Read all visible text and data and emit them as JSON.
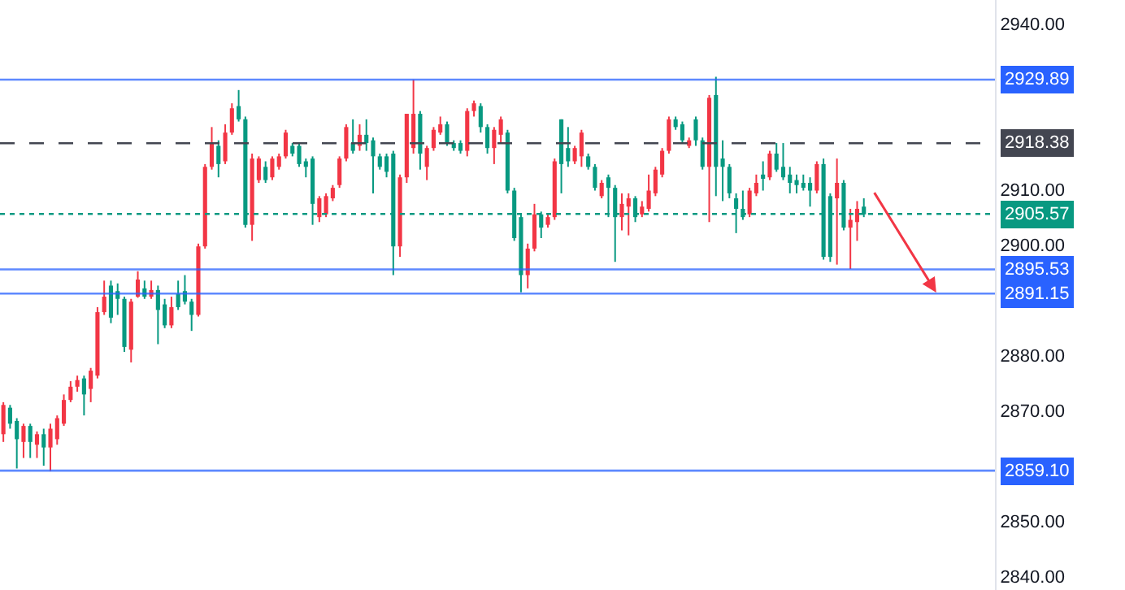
{
  "chart_data": {
    "type": "candlestick",
    "categories": [
      null,
      null,
      null,
      null,
      null,
      null,
      null,
      null,
      null,
      null,
      null,
      null,
      null,
      null,
      null,
      null,
      null,
      null,
      null,
      null,
      null,
      null,
      null,
      null,
      null,
      null,
      null,
      null,
      null,
      null,
      null,
      null,
      null,
      null,
      null,
      null,
      null,
      null,
      null,
      null,
      null,
      null,
      null,
      null,
      null,
      null,
      null,
      null,
      null,
      null,
      null,
      null,
      null,
      null,
      null,
      null,
      null,
      null,
      null,
      null,
      null,
      null,
      null,
      null,
      null,
      null,
      null,
      null,
      null,
      null,
      null,
      null,
      null,
      null,
      null,
      null,
      null,
      null,
      null,
      null,
      null,
      null,
      null,
      null,
      null,
      null,
      null,
      null,
      null,
      null,
      null,
      null,
      null,
      null,
      null,
      null,
      null,
      null,
      null,
      null,
      null,
      null,
      null,
      null,
      null,
      null,
      null,
      null,
      null,
      null,
      null,
      null,
      null,
      null,
      null,
      null,
      null,
      null,
      null,
      null,
      null,
      null,
      null,
      null,
      null,
      null,
      null,
      null,
      null,
      null,
      null,
      null,
      null,
      null,
      null,
      null,
      null,
      null,
      null,
      null,
      null,
      null,
      null,
      null,
      null,
      null,
      null,
      null
    ],
    "ohlc": [
      [
        2865.7,
        2871.5,
        2864.3,
        2871.0
      ],
      [
        2870.5,
        2871.0,
        2866.7,
        2867.6
      ],
      [
        2868.1,
        2868.6,
        2859.5,
        2864.8
      ],
      [
        2864.3,
        2867.6,
        2861.4,
        2867.2
      ],
      [
        2867.2,
        2867.6,
        2861.4,
        2864.3
      ],
      [
        2863.8,
        2866.2,
        2861.4,
        2865.7
      ],
      [
        2865.7,
        2866.7,
        2860.0,
        2863.3
      ],
      [
        2863.3,
        2867.6,
        2859.0,
        2866.7
      ],
      [
        2864.8,
        2869.1,
        2863.8,
        2868.6
      ],
      [
        2867.6,
        2872.9,
        2867.2,
        2871.9
      ],
      [
        2871.9,
        2875.3,
        2871.5,
        2874.3
      ],
      [
        2874.3,
        2876.3,
        2873.4,
        2875.5
      ],
      [
        2875.8,
        2876.3,
        2869.1,
        2872.9
      ],
      [
        2873.9,
        2877.7,
        2871.5,
        2877.2
      ],
      [
        2876.3,
        2888.7,
        2875.8,
        2887.8
      ],
      [
        2887.8,
        2893.5,
        2887.3,
        2890.6
      ],
      [
        2892.6,
        2893.5,
        2885.8,
        2886.8
      ],
      [
        2891.6,
        2893.0,
        2887.3,
        2890.2
      ],
      [
        2890.2,
        2890.6,
        2880.6,
        2881.5
      ],
      [
        2881.0,
        2890.2,
        2878.7,
        2889.7
      ],
      [
        2890.6,
        2895.2,
        2890.4,
        2893.7
      ],
      [
        2892.1,
        2893.5,
        2890.2,
        2890.6
      ],
      [
        2890.6,
        2893.5,
        2890.2,
        2891.8
      ],
      [
        2891.8,
        2892.6,
        2882.0,
        2888.2
      ],
      [
        2889.2,
        2890.2,
        2884.9,
        2885.4
      ],
      [
        2885.4,
        2890.6,
        2884.9,
        2888.7
      ],
      [
        2891.1,
        2893.5,
        2888.2,
        2888.7
      ],
      [
        2891.6,
        2894.5,
        2889.2,
        2889.7
      ],
      [
        2889.7,
        2890.2,
        2884.4,
        2887.3
      ],
      [
        2887.3,
        2900.2,
        2887.0,
        2899.7
      ],
      [
        2899.7,
        2914.6,
        2899.3,
        2914.1
      ],
      [
        2914.1,
        2921.3,
        2913.6,
        2918.4
      ],
      [
        2917.9,
        2918.9,
        2912.2,
        2914.6
      ],
      [
        2915.1,
        2921.8,
        2914.6,
        2920.3
      ],
      [
        2920.3,
        2925.6,
        2919.9,
        2924.7
      ],
      [
        2925.1,
        2928.0,
        2922.3,
        2922.7
      ],
      [
        2922.7,
        2923.2,
        2903.1,
        2903.6
      ],
      [
        2903.6,
        2916.5,
        2900.7,
        2915.6
      ],
      [
        2911.7,
        2916.0,
        2911.2,
        2915.6
      ],
      [
        2914.1,
        2915.1,
        2911.2,
        2911.7
      ],
      [
        2912.2,
        2916.0,
        2911.7,
        2915.6
      ],
      [
        2914.1,
        2916.5,
        2913.6,
        2916.0
      ],
      [
        2916.0,
        2920.8,
        2915.6,
        2920.3
      ],
      [
        2917.9,
        2918.4,
        2916.0,
        2916.5
      ],
      [
        2917.9,
        2918.4,
        2914.1,
        2914.6
      ],
      [
        2915.1,
        2915.6,
        2912.2,
        2914.1
      ],
      [
        2915.6,
        2916.0,
        2903.6,
        2907.4
      ],
      [
        2905.0,
        2908.8,
        2904.1,
        2908.4
      ],
      [
        2905.5,
        2909.3,
        2905.0,
        2908.8
      ],
      [
        2908.4,
        2910.8,
        2907.9,
        2910.3
      ],
      [
        2910.8,
        2916.0,
        2910.3,
        2915.6
      ],
      [
        2915.6,
        2921.8,
        2915.1,
        2921.3
      ],
      [
        2918.4,
        2922.7,
        2916.5,
        2917.0
      ],
      [
        2917.9,
        2921.8,
        2917.0,
        2919.9
      ],
      [
        2919.9,
        2922.7,
        2917.0,
        2918.4
      ],
      [
        2918.9,
        2919.4,
        2909.3,
        2916.0
      ],
      [
        2916.0,
        2916.5,
        2913.6,
        2914.1
      ],
      [
        2916.0,
        2916.5,
        2912.2,
        2913.2
      ],
      [
        2916.5,
        2917.0,
        2894.5,
        2899.7
      ],
      [
        2899.7,
        2912.7,
        2897.8,
        2912.2
      ],
      [
        2912.2,
        2923.7,
        2911.2,
        2923.7
      ],
      [
        2917.5,
        2929.9,
        2916.5,
        2923.7
      ],
      [
        2923.7,
        2924.2,
        2913.6,
        2916.5
      ],
      [
        2914.1,
        2917.9,
        2911.7,
        2917.5
      ],
      [
        2917.5,
        2921.3,
        2917.0,
        2920.8
      ],
      [
        2920.3,
        2923.2,
        2919.9,
        2921.8
      ],
      [
        2921.8,
        2922.3,
        2917.9,
        2918.4
      ],
      [
        2918.4,
        2918.9,
        2917.0,
        2917.5
      ],
      [
        2918.4,
        2918.9,
        2916.5,
        2917.0
      ],
      [
        2917.0,
        2924.7,
        2916.0,
        2924.2
      ],
      [
        2924.2,
        2926.1,
        2923.2,
        2925.6
      ],
      [
        2925.1,
        2925.6,
        2920.3,
        2921.3
      ],
      [
        2921.3,
        2921.8,
        2916.5,
        2917.5
      ],
      [
        2917.5,
        2921.3,
        2914.6,
        2920.8
      ],
      [
        2919.9,
        2923.2,
        2918.4,
        2922.7
      ],
      [
        2920.3,
        2920.8,
        2909.3,
        2909.8
      ],
      [
        2909.8,
        2910.3,
        2900.7,
        2901.2
      ],
      [
        2905.0,
        2905.5,
        2891.4,
        2894.5
      ],
      [
        2894.5,
        2900.2,
        2892.1,
        2899.3
      ],
      [
        2899.3,
        2907.4,
        2898.8,
        2905.5
      ],
      [
        2905.5,
        2906.0,
        2901.2,
        2903.1
      ],
      [
        2903.6,
        2905.5,
        2903.1,
        2905.0
      ],
      [
        2905.0,
        2915.6,
        2904.5,
        2915.1
      ],
      [
        2922.7,
        2922.7,
        2909.3,
        2914.6
      ],
      [
        2917.5,
        2921.3,
        2914.1,
        2915.1
      ],
      [
        2915.1,
        2917.9,
        2914.6,
        2917.5
      ],
      [
        2916.0,
        2920.8,
        2914.1,
        2920.3
      ],
      [
        2916.0,
        2916.5,
        2913.6,
        2914.1
      ],
      [
        2914.1,
        2914.6,
        2909.8,
        2910.3
      ],
      [
        2908.8,
        2911.7,
        2908.4,
        2911.2
      ],
      [
        2912.2,
        2912.7,
        2905.0,
        2910.3
      ],
      [
        2910.3,
        2910.8,
        2896.9,
        2905.0
      ],
      [
        2905.0,
        2909.3,
        2902.6,
        2907.4
      ],
      [
        2906.9,
        2909.3,
        2901.7,
        2908.4
      ],
      [
        2908.4,
        2908.8,
        2904.1,
        2905.0
      ],
      [
        2905.5,
        2907.9,
        2905.0,
        2906.9
      ],
      [
        2906.5,
        2912.7,
        2906.0,
        2909.8
      ],
      [
        2909.3,
        2914.1,
        2908.8,
        2913.6
      ],
      [
        2912.7,
        2917.5,
        2912.2,
        2917.0
      ],
      [
        2917.0,
        2923.2,
        2916.5,
        2922.7
      ],
      [
        2922.7,
        2923.2,
        2920.8,
        2921.3
      ],
      [
        2921.8,
        2922.3,
        2918.4,
        2918.9
      ],
      [
        2917.9,
        2919.4,
        2917.5,
        2918.9
      ],
      [
        2922.7,
        2923.2,
        2917.9,
        2918.9
      ],
      [
        2918.9,
        2919.4,
        2913.6,
        2914.1
      ],
      [
        2914.1,
        2927.1,
        2904.1,
        2926.6
      ],
      [
        2927.1,
        2930.4,
        2908.8,
        2914.1
      ],
      [
        2915.6,
        2918.9,
        2907.9,
        2914.1
      ],
      [
        2914.1,
        2914.6,
        2908.4,
        2909.3
      ],
      [
        2908.4,
        2909.3,
        2902.1,
        2906.5
      ],
      [
        2906.5,
        2909.8,
        2904.5,
        2905.0
      ],
      [
        2905.5,
        2910.3,
        2905.0,
        2909.8
      ],
      [
        2909.3,
        2912.7,
        2908.8,
        2911.2
      ],
      [
        2912.7,
        2915.1,
        2909.8,
        2912.2
      ],
      [
        2912.2,
        2917.0,
        2911.7,
        2916.5
      ],
      [
        2916.5,
        2918.4,
        2913.2,
        2913.6
      ],
      [
        2914.1,
        2918.4,
        2911.7,
        2912.2
      ],
      [
        2912.7,
        2914.1,
        2909.3,
        2911.2
      ],
      [
        2911.7,
        2912.7,
        2909.3,
        2910.8
      ],
      [
        2911.2,
        2912.7,
        2909.8,
        2910.3
      ],
      [
        2911.2,
        2912.2,
        2906.9,
        2909.8
      ],
      [
        2909.8,
        2915.1,
        2909.3,
        2914.6
      ],
      [
        2914.6,
        2915.6,
        2897.3,
        2897.8
      ],
      [
        2908.8,
        2909.3,
        2896.9,
        2897.8
      ],
      [
        2908.4,
        2915.6,
        2896.4,
        2911.2
      ],
      [
        2911.2,
        2911.7,
        2902.6,
        2903.1
      ],
      [
        2903.1,
        2906.5,
        2895.6,
        2904.5
      ],
      [
        2904.1,
        2907.9,
        2900.7,
        2906.5
      ],
      [
        2906.9,
        2908.4,
        2905.0,
        2905.5
      ],
      null,
      null,
      null,
      null,
      null,
      null,
      null,
      null,
      null,
      null,
      null,
      null,
      null,
      null,
      null,
      null,
      null,
      null,
      null
    ],
    "colors": [
      "#f23645",
      "#089981",
      "#089981",
      "#f23645",
      "#089981",
      "#f23645",
      "#089981",
      "#f23645",
      "#f23645",
      "#f23645",
      "#f23645",
      "#f23645",
      "#089981",
      "#f23645",
      "#f23645",
      "#f23645",
      "#089981",
      "#089981",
      "#089981",
      "#f23645",
      "#f23645",
      "#089981",
      "#f23645",
      "#089981",
      "#089981",
      "#f23645",
      "#089981",
      "#089981",
      "#089981",
      "#f23645",
      "#f23645",
      "#f23645",
      "#089981",
      "#f23645",
      "#f23645",
      "#089981",
      "#089981",
      "#f23645",
      "#f23645",
      "#089981",
      "#f23645",
      "#f23645",
      "#f23645",
      "#089981",
      "#089981",
      "#089981",
      "#089981",
      "#f23645",
      "#f23645",
      "#f23645",
      "#f23645",
      "#f23645",
      "#089981",
      "#f23645",
      "#089981",
      "#089981",
      "#089981",
      "#089981",
      "#089981",
      "#f23645",
      "#f23645",
      "#f23645",
      "#089981",
      "#f23645",
      "#f23645",
      "#f23645",
      "#089981",
      "#089981",
      "#089981",
      "#f23645",
      "#f23645",
      "#089981",
      "#089981",
      "#f23645",
      "#f23645",
      "#089981",
      "#089981",
      "#089981",
      "#f23645",
      "#f23645",
      "#089981",
      "#f23645",
      "#f23645",
      "#089981",
      "#089981",
      "#f23645",
      "#f23645",
      "#089981",
      "#089981",
      "#f23645",
      "#089981",
      "#089981",
      "#f23645",
      "#f23645",
      "#089981",
      "#f23645",
      "#f23645",
      "#f23645",
      "#f23645",
      "#f23645",
      "#089981",
      "#089981",
      "#f23645",
      "#089981",
      "#089981",
      "#f23645",
      "#089981",
      "#089981",
      "#089981",
      "#089981",
      "#089981",
      "#f23645",
      "#f23645",
      "#089981",
      "#f23645",
      "#089981",
      "#089981",
      "#089981",
      "#089981",
      "#089981",
      "#089981",
      "#f23645",
      "#089981",
      "#089981",
      "#f23645",
      "#089981",
      "#f23645",
      "#f23645",
      "#089981",
      null,
      null,
      null,
      null,
      null,
      null,
      null,
      null,
      null,
      null,
      null,
      null,
      null,
      null,
      null,
      null,
      null,
      null,
      null
    ],
    "ylim": [
      2837.5,
      2944.3
    ],
    "yticks": [
      {
        "value": 2840,
        "label": "2840.00"
      },
      {
        "value": 2850,
        "label": "2850.00"
      },
      {
        "value": 2870,
        "label": "2870.00"
      },
      {
        "value": 2880,
        "label": "2880.00"
      },
      {
        "value": 2900,
        "label": "2900.00"
      },
      {
        "value": 2910,
        "label": "2910.00"
      },
      {
        "value": 2940,
        "label": "2940.00"
      }
    ],
    "ref_lines": [
      {
        "axis": "y",
        "value": 2929.89,
        "label": "2929.89",
        "color": "#2962ff",
        "line_style": "solid"
      },
      {
        "axis": "y",
        "value": 2918.38,
        "label": "2918.38",
        "color": "#434651",
        "line_style": "dashed"
      },
      {
        "axis": "y",
        "value": 2905.57,
        "label": "2905.57",
        "color": "#089981",
        "line_style": "dotted"
      },
      {
        "axis": "y",
        "value": 2895.53,
        "label": "2895.53",
        "color": "#2962ff",
        "line_style": "solid"
      },
      {
        "axis": "y",
        "value": 2891.15,
        "label": "2891.15",
        "color": "#2962ff",
        "line_style": "solid"
      },
      {
        "axis": "y",
        "value": 2859.1,
        "label": "2859.10",
        "color": "#2962ff",
        "line_style": "solid"
      }
    ]
  }
}
